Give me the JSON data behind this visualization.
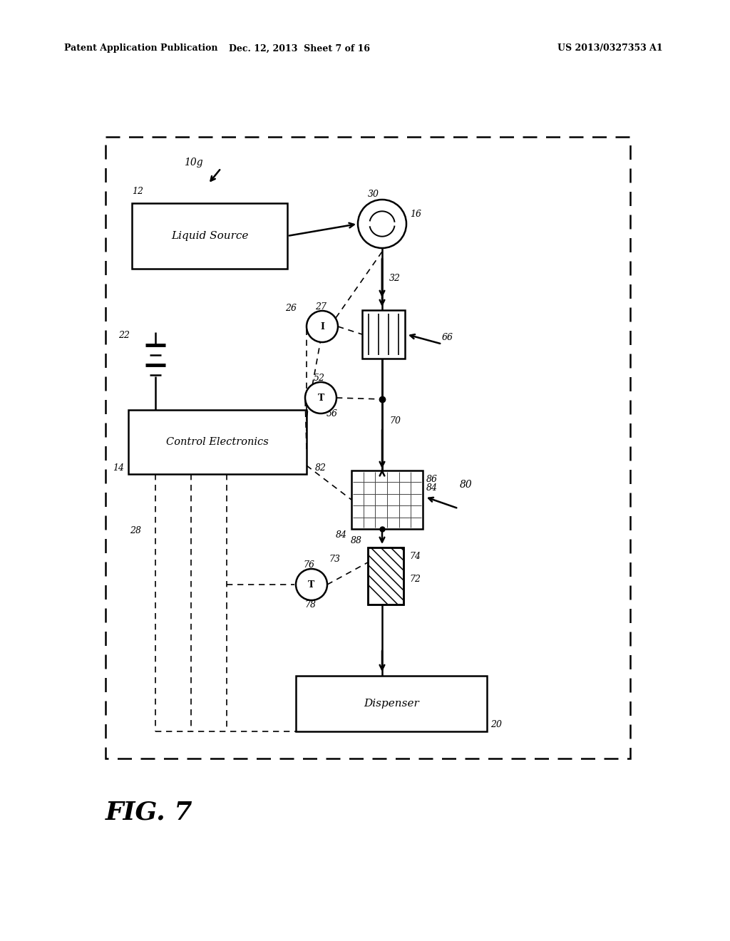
{
  "bg_color": "#ffffff",
  "header_left": "Patent Application Publication",
  "header_mid": "Dec. 12, 2013  Sheet 7 of 16",
  "header_right": "US 2013/0327353 A1",
  "fig_label": "FIG. 7"
}
